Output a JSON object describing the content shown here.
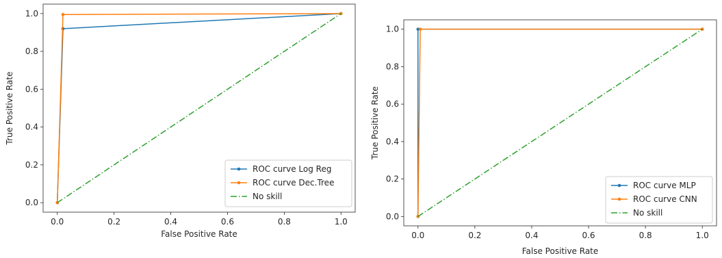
{
  "chart_data": [
    {
      "type": "line",
      "xlabel": "False Positive Rate",
      "ylabel": "True Positive Rate",
      "xlim": [
        -0.05,
        1.05
      ],
      "ylim": [
        -0.05,
        1.05
      ],
      "xticks": [
        0.0,
        0.2,
        0.4,
        0.6,
        0.8,
        1.0
      ],
      "yticks": [
        0.0,
        0.2,
        0.4,
        0.6,
        0.8,
        1.0
      ],
      "tick_labels": [
        "0.0",
        "0.2",
        "0.4",
        "0.6",
        "0.8",
        "1.0"
      ],
      "legend_position": "lower-right",
      "grid": false,
      "series": [
        {
          "name": "ROC curve Log Reg",
          "color": "#1f77b4",
          "style": "solid",
          "marker": "dot",
          "x": [
            0.0,
            0.02,
            1.0
          ],
          "y": [
            0.0,
            0.92,
            1.0
          ]
        },
        {
          "name": "ROC curve Dec.Tree",
          "color": "#ff7f0e",
          "style": "solid",
          "marker": "dot",
          "x": [
            0.0,
            0.02,
            1.0
          ],
          "y": [
            0.0,
            0.995,
            1.0
          ]
        },
        {
          "name": "No skill",
          "color": "#2ca02c",
          "style": "dashdot",
          "marker": "none",
          "x": [
            0.0,
            1.0
          ],
          "y": [
            0.0,
            1.0
          ]
        }
      ]
    },
    {
      "type": "line",
      "xlabel": "False Positive Rate",
      "ylabel": "True Positive Rate",
      "xlim": [
        -0.05,
        1.05
      ],
      "ylim": [
        -0.05,
        1.05
      ],
      "xticks": [
        0.0,
        0.2,
        0.4,
        0.6,
        0.8,
        1.0
      ],
      "yticks": [
        0.0,
        0.2,
        0.4,
        0.6,
        0.8,
        1.0
      ],
      "tick_labels": [
        "0.0",
        "0.2",
        "0.4",
        "0.6",
        "0.8",
        "1.0"
      ],
      "legend_position": "lower-right",
      "grid": false,
      "series": [
        {
          "name": "ROC curve MLP",
          "color": "#1f77b4",
          "style": "solid",
          "marker": "dot",
          "x": [
            0.0,
            0.0,
            1.0
          ],
          "y": [
            0.0,
            1.0,
            1.0
          ]
        },
        {
          "name": "ROC curve CNN",
          "color": "#ff7f0e",
          "style": "solid",
          "marker": "dot",
          "x": [
            0.0,
            0.008,
            1.0
          ],
          "y": [
            0.0,
            1.0,
            1.0
          ]
        },
        {
          "name": "No skill",
          "color": "#2ca02c",
          "style": "dashdot",
          "marker": "none",
          "x": [
            0.0,
            1.0
          ],
          "y": [
            0.0,
            1.0
          ]
        }
      ]
    }
  ]
}
